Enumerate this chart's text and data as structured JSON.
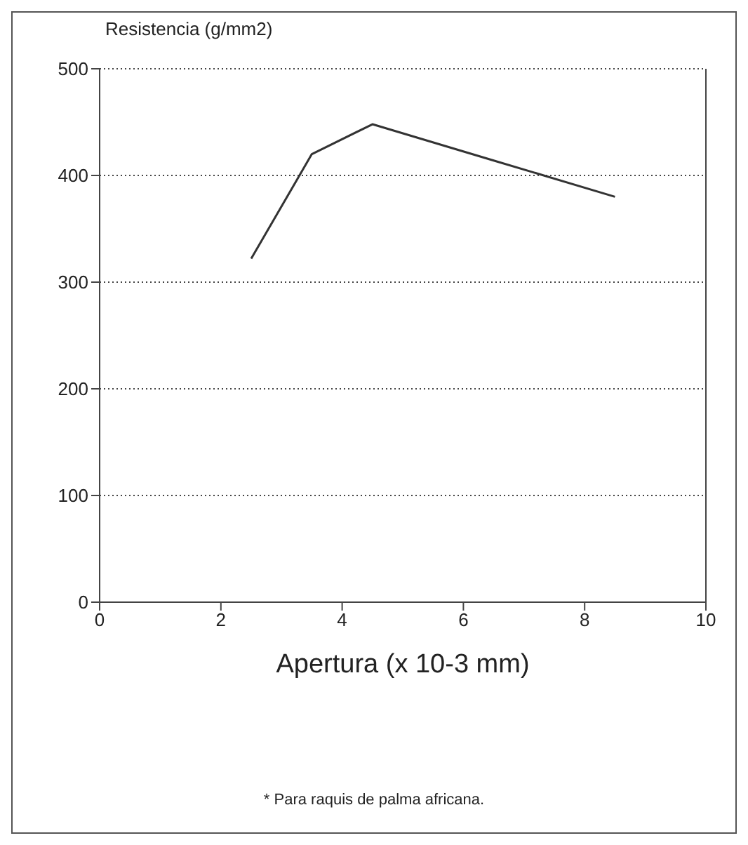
{
  "chart_data": {
    "type": "line",
    "ylabel": "Resistencia (g/mm2)",
    "xlabel": "Apertura (x 10-3 mm)",
    "x": [
      2.5,
      3.5,
      4.5,
      6.5,
      8.5
    ],
    "series": [
      {
        "color": "#333333",
        "values": [
          322,
          420,
          448,
          414,
          380
        ]
      }
    ],
    "xlim": [
      0,
      10
    ],
    "xticks": [
      0,
      2,
      4,
      6,
      8,
      10
    ],
    "ylim": [
      0,
      500
    ],
    "yticks": [
      0,
      100,
      200,
      300,
      400,
      500
    ],
    "grid": "y",
    "marker": "none",
    "line_style": "solid",
    "annotations": [
      "* Para raquis de palma africana."
    ]
  }
}
